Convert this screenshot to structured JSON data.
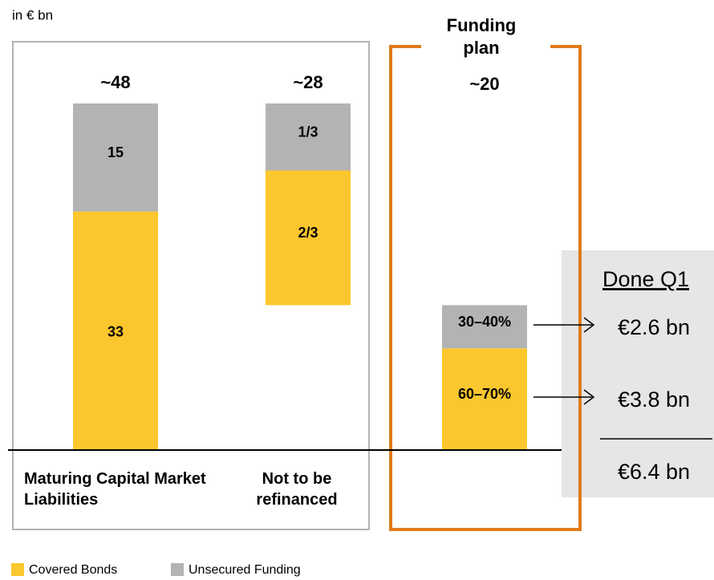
{
  "chart_data": {
    "type": "waterfall",
    "unit_label": "in € bn",
    "categories": [
      "Maturing Capital Market Liabilities",
      "Not to be refinanced",
      "Funding plan"
    ],
    "series": [
      {
        "name": "Covered Bonds",
        "color": "#fcc72e",
        "values": [
          33,
          18.7,
          14
        ],
        "value_labels": [
          "33",
          "2/3",
          "60–70%"
        ]
      },
      {
        "name": "Unsecured Funding",
        "color": "#b3b3b3",
        "values": [
          15,
          9.3,
          6
        ],
        "value_labels": [
          "15",
          "1/3",
          "30–40%"
        ]
      }
    ],
    "totals": {
      "values": [
        48,
        28,
        20
      ],
      "value_labels": [
        "~48",
        "~28",
        "~20"
      ]
    },
    "annotations": {
      "title": "Done Q1",
      "items": [
        "€2.6 bn",
        "€3.8 bn"
      ],
      "total": "€6.4 bn"
    }
  }
}
